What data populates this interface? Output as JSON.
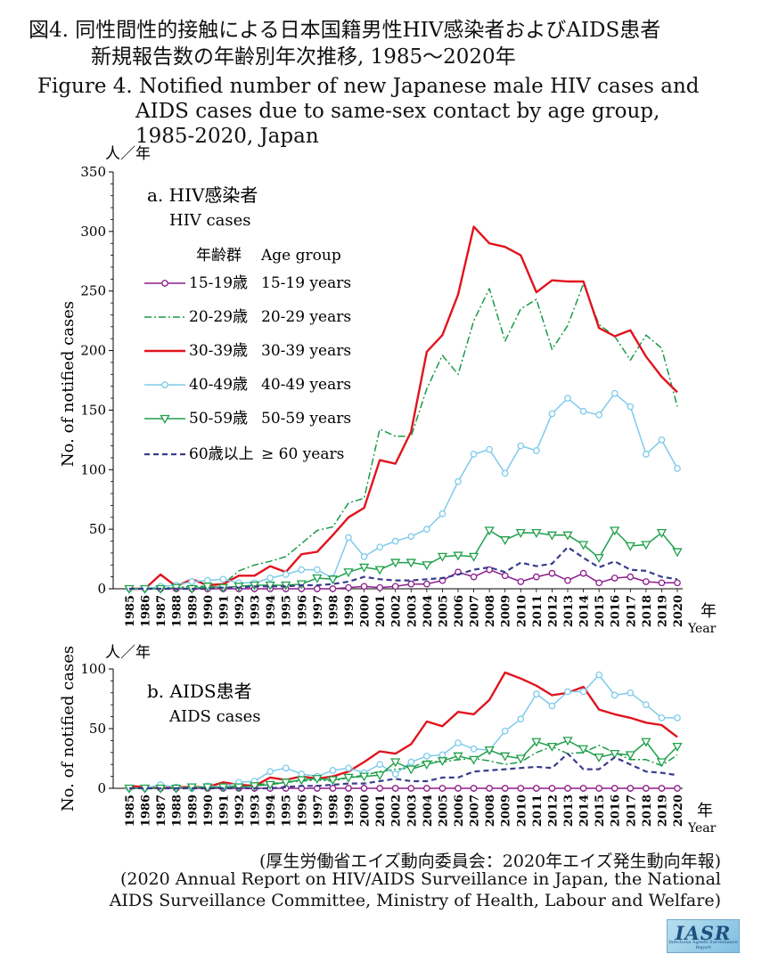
{
  "titles": {
    "ja_line1": "図4. 同性間性的接触による日本国籍男性HIV感染者およびAIDS患者",
    "ja_line2": "新規報告数の年齢別年次推移, 1985〜2020年",
    "en_line1": "Figure 4. Notified number of new Japanese male HIV cases and",
    "en_line2": "AIDS cases due to same-sex contact by age group,",
    "en_line3": "1985-2020, Japan"
  },
  "source": {
    "line1": "(厚生労働省エイズ動向委員会：2020年エイズ発生動向年報)",
    "line2": "(2020 Annual Report on HIV/AIDS Surveillance in Japan, the National",
    "line3": "AIDS Surveillance Committee, Ministry of Health, Labour and Welfare)"
  },
  "logo": {
    "text": "IASR",
    "subtext": "Infectious Agents Surveillance Report"
  },
  "legend": {
    "header_ja": "年齢群",
    "header_en": "Age group"
  },
  "chart_data": [
    {
      "type": "line",
      "title_ja": "a. HIV感染者",
      "title_en": "HIV cases",
      "ylabel": "No. of notified cases",
      "yunit": "人／年",
      "xunit_ja": "年",
      "xunit_en": "Year",
      "ylim": [
        0,
        350
      ],
      "yticks": [
        0,
        50,
        100,
        150,
        200,
        250,
        300,
        350
      ],
      "x": [
        1985,
        1986,
        1987,
        1988,
        1989,
        1990,
        1991,
        1992,
        1993,
        1994,
        1995,
        1996,
        1997,
        1998,
        1999,
        2000,
        2001,
        2002,
        2003,
        2004,
        2005,
        2006,
        2007,
        2008,
        2009,
        2010,
        2011,
        2012,
        2013,
        2014,
        2015,
        2016,
        2017,
        2018,
        2019,
        2020
      ],
      "series": [
        {
          "name": "15-19歳",
          "name_en": "15-19 years",
          "color": "#8b1e8b",
          "style": "solid-circle",
          "values": [
            0,
            0,
            0,
            0,
            0,
            0,
            0,
            0,
            0,
            0,
            0,
            0,
            0,
            0,
            1,
            2,
            1,
            2,
            4,
            4,
            7,
            14,
            10,
            16,
            11,
            6,
            10,
            13,
            7,
            13,
            5,
            9,
            10,
            6,
            5,
            5
          ]
        },
        {
          "name": "20-29歳",
          "name_en": "20-29 years",
          "color": "#1a9a4a",
          "style": "dashdot",
          "values": [
            0,
            0,
            1,
            1,
            2,
            2,
            4,
            15,
            20,
            23,
            27,
            38,
            49,
            52,
            72,
            76,
            134,
            128,
            128,
            168,
            196,
            180,
            225,
            252,
            208,
            235,
            243,
            201,
            221,
            256,
            222,
            212,
            192,
            213,
            202,
            153
          ]
        },
        {
          "name": "30-39歳",
          "name_en": "30-39 years",
          "color": "#e0141e",
          "style": "thick",
          "values": [
            0,
            0,
            12,
            2,
            8,
            3,
            4,
            11,
            11,
            19,
            14,
            29,
            31,
            45,
            60,
            68,
            108,
            105,
            132,
            199,
            213,
            247,
            304,
            290,
            287,
            280,
            249,
            259,
            258,
            258,
            219,
            212,
            217,
            195,
            178,
            165
          ]
        },
        {
          "name": "40-49歳",
          "name_en": "40-49 years",
          "color": "#7ecbea",
          "style": "circle",
          "values": [
            0,
            0,
            2,
            3,
            6,
            7,
            8,
            5,
            5,
            9,
            12,
            16,
            16,
            9,
            43,
            27,
            35,
            40,
            44,
            50,
            63,
            90,
            113,
            117,
            97,
            120,
            116,
            147,
            160,
            149,
            146,
            164,
            153,
            113,
            125,
            101
          ]
        },
        {
          "name": "50-59歳",
          "name_en": "50-59 years",
          "color": "#1fa04a",
          "style": "triangle",
          "values": [
            0,
            0,
            0,
            1,
            0,
            2,
            1,
            2,
            3,
            3,
            3,
            4,
            9,
            8,
            14,
            18,
            16,
            22,
            22,
            20,
            27,
            28,
            27,
            49,
            41,
            47,
            47,
            45,
            45,
            37,
            26,
            49,
            36,
            37,
            47,
            31
          ]
        },
        {
          "name": "60歳以上",
          "name_en": "≥ 60 years",
          "color": "#3a3c8c",
          "style": "dash",
          "values": [
            0,
            0,
            0,
            0,
            0,
            0,
            1,
            1,
            2,
            2,
            2,
            3,
            3,
            4,
            6,
            10,
            8,
            7,
            7,
            8,
            9,
            12,
            16,
            18,
            14,
            22,
            19,
            21,
            35,
            26,
            18,
            23,
            16,
            15,
            10,
            8
          ]
        }
      ]
    },
    {
      "type": "line",
      "title_ja": "b. AIDS患者",
      "title_en": "AIDS cases",
      "ylabel": "No. of notified cases",
      "yunit": "人／年",
      "xunit_ja": "年",
      "xunit_en": "Year",
      "ylim": [
        0,
        100
      ],
      "yticks": [
        0,
        50,
        100
      ],
      "x": [
        1985,
        1986,
        1987,
        1988,
        1989,
        1990,
        1991,
        1992,
        1993,
        1994,
        1995,
        1996,
        1997,
        1998,
        1999,
        2000,
        2001,
        2002,
        2003,
        2004,
        2005,
        2006,
        2007,
        2008,
        2009,
        2010,
        2011,
        2012,
        2013,
        2014,
        2015,
        2016,
        2017,
        2018,
        2019,
        2020
      ],
      "series": [
        {
          "name": "15-19歳",
          "color": "#8b1e8b",
          "style": "solid-circle",
          "values": [
            0,
            0,
            0,
            0,
            0,
            0,
            0,
            0,
            0,
            0,
            0,
            0,
            0,
            0,
            0,
            0,
            0,
            0,
            0,
            0,
            0,
            0,
            0,
            0,
            0,
            0,
            0,
            0,
            0,
            0,
            0,
            0,
            0,
            0,
            0,
            0
          ]
        },
        {
          "name": "20-29歳",
          "color": "#1a9a4a",
          "style": "dashdot",
          "values": [
            0,
            0,
            1,
            0,
            1,
            1,
            1,
            2,
            3,
            4,
            5,
            6,
            7,
            6,
            9,
            11,
            14,
            16,
            17,
            23,
            22,
            24,
            25,
            23,
            20,
            22,
            30,
            35,
            29,
            30,
            36,
            30,
            24,
            24,
            19,
            28
          ]
        },
        {
          "name": "30-39歳",
          "color": "#e0141e",
          "style": "thick",
          "values": [
            2,
            1,
            0,
            1,
            1,
            1,
            5,
            3,
            2,
            9,
            7,
            10,
            8,
            10,
            14,
            22,
            31,
            29,
            37,
            56,
            52,
            64,
            62,
            74,
            97,
            92,
            86,
            78,
            80,
            85,
            66,
            62,
            59,
            55,
            53,
            43
          ]
        },
        {
          "name": "40-49歳",
          "color": "#7ecbea",
          "style": "circle",
          "values": [
            0,
            0,
            3,
            1,
            0,
            2,
            1,
            5,
            6,
            14,
            17,
            12,
            10,
            15,
            17,
            13,
            20,
            12,
            22,
            27,
            28,
            38,
            33,
            32,
            48,
            58,
            79,
            69,
            81,
            81,
            95,
            78,
            80,
            70,
            59,
            59
          ]
        },
        {
          "name": "50-59歳",
          "color": "#1fa04a",
          "style": "triangle",
          "values": [
            0,
            0,
            0,
            0,
            1,
            1,
            1,
            1,
            2,
            3,
            5,
            7,
            8,
            7,
            9,
            10,
            11,
            22,
            16,
            20,
            23,
            27,
            24,
            32,
            27,
            25,
            39,
            35,
            40,
            33,
            26,
            29,
            28,
            39,
            22,
            35
          ]
        },
        {
          "name": "60歳以上",
          "color": "#3a3c8c",
          "style": "dash",
          "values": [
            0,
            0,
            0,
            0,
            0,
            0,
            0,
            0,
            0,
            0,
            1,
            2,
            2,
            3,
            4,
            4,
            6,
            8,
            6,
            6,
            9,
            9,
            14,
            15,
            16,
            17,
            18,
            17,
            29,
            16,
            16,
            26,
            20,
            14,
            13,
            11
          ]
        }
      ]
    }
  ]
}
